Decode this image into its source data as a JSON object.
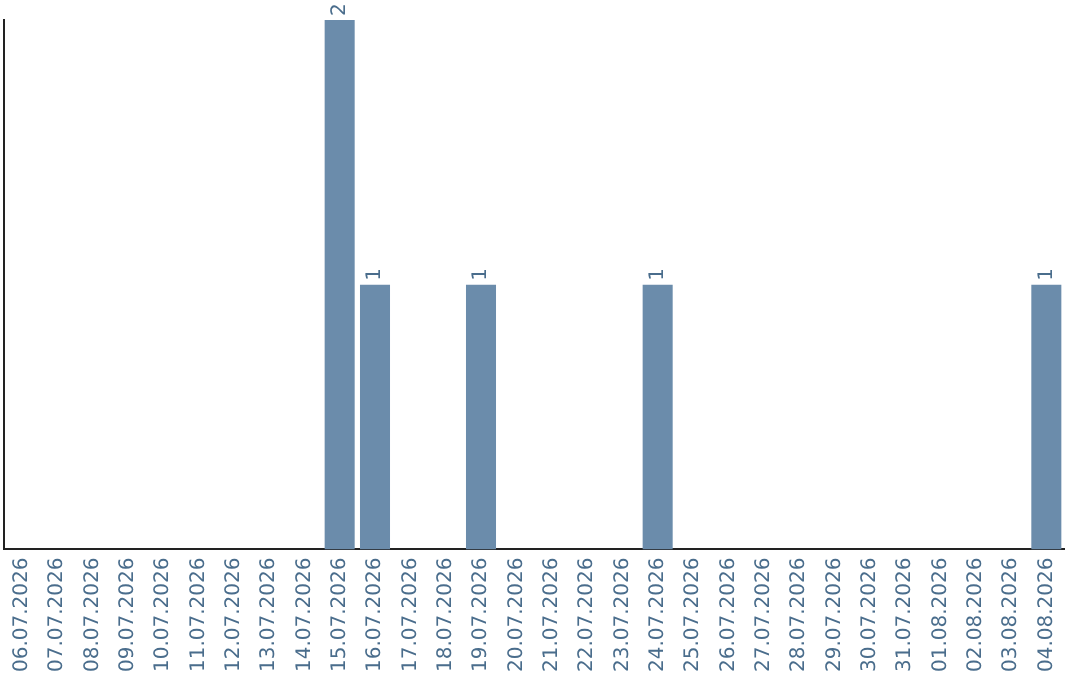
{
  "chart_data": {
    "type": "bar",
    "categories": [
      "06.07.2026",
      "07.07.2026",
      "08.07.2026",
      "09.07.2026",
      "10.07.2026",
      "11.07.2026",
      "12.07.2026",
      "13.07.2026",
      "14.07.2026",
      "15.07.2026",
      "16.07.2026",
      "17.07.2026",
      "18.07.2026",
      "19.07.2026",
      "20.07.2026",
      "21.07.2026",
      "22.07.2026",
      "23.07.2026",
      "24.07.2026",
      "25.07.2026",
      "26.07.2026",
      "27.07.2026",
      "28.07.2026",
      "29.07.2026",
      "30.07.2026",
      "31.07.2026",
      "01.08.2026",
      "02.08.2026",
      "03.08.2026",
      "04.08.2026"
    ],
    "values": [
      0,
      0,
      0,
      0,
      0,
      0,
      0,
      0,
      0,
      2,
      1,
      0,
      0,
      1,
      0,
      0,
      0,
      0,
      1,
      0,
      0,
      0,
      0,
      0,
      0,
      0,
      0,
      0,
      0,
      1
    ],
    "value_labels": [
      null,
      null,
      null,
      null,
      null,
      null,
      null,
      null,
      null,
      "2",
      "1",
      null,
      null,
      "1",
      null,
      null,
      null,
      null,
      "1",
      null,
      null,
      null,
      null,
      null,
      null,
      null,
      null,
      null,
      null,
      "1"
    ],
    "color": "#6b8cab",
    "ylim": [
      0,
      2
    ],
    "tick_labels": "x",
    "grid": false,
    "legend": false
  }
}
